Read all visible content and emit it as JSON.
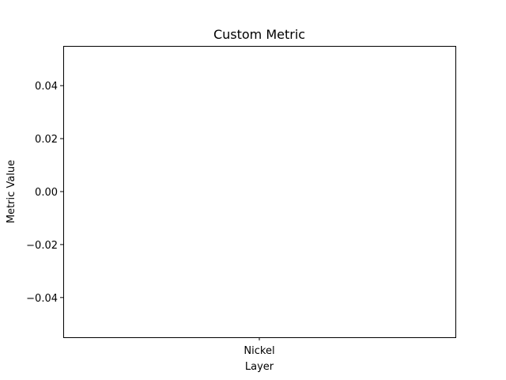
{
  "chart_data": {
    "type": "bar",
    "title": "Custom Metric",
    "xlabel": "Layer",
    "ylabel": "Metric Value",
    "categories": [
      "Nickel"
    ],
    "values": [
      0
    ],
    "ylim": [
      -0.055,
      0.055
    ],
    "yticks": [
      {
        "value": 0.04,
        "label": "0.04"
      },
      {
        "value": 0.02,
        "label": "0.02"
      },
      {
        "value": 0.0,
        "label": "0.00"
      },
      {
        "value": -0.02,
        "label": "−0.02"
      },
      {
        "value": -0.04,
        "label": "−0.04"
      }
    ],
    "grid": false,
    "legend": "none"
  }
}
